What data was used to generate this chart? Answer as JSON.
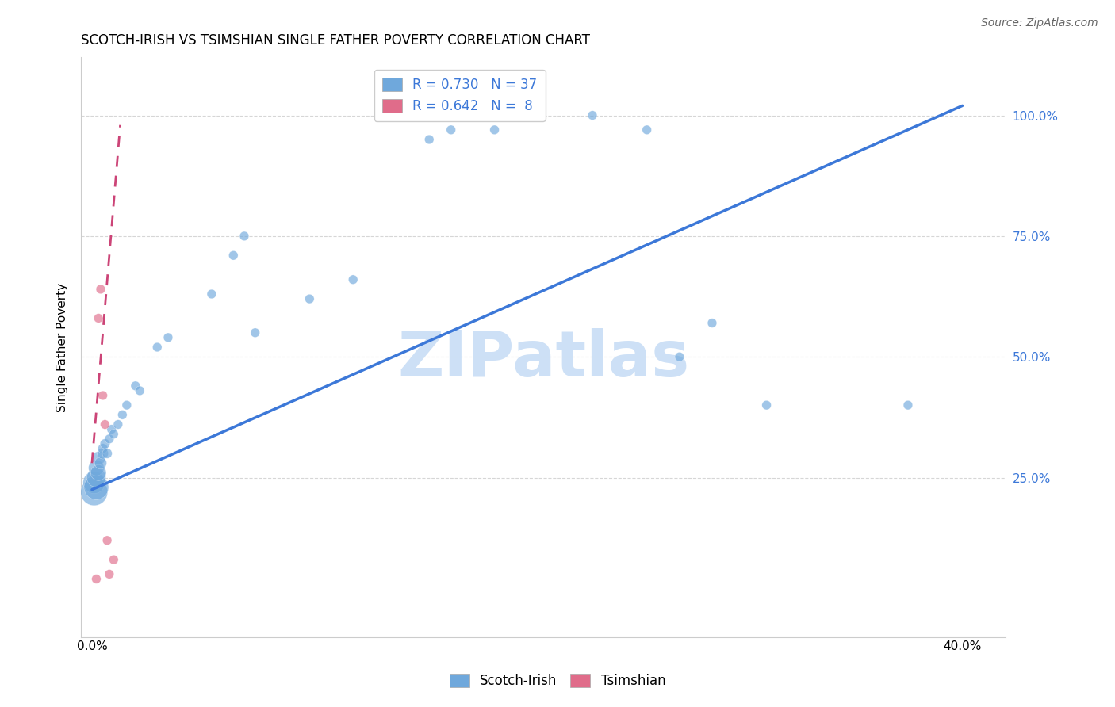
{
  "title": "SCOTCH-IRISH VS TSIMSHIAN SINGLE FATHER POVERTY CORRELATION CHART",
  "source": "Source: ZipAtlas.com",
  "ylabel": "Single Father Poverty",
  "ylabel_ticks": [
    "100.0%",
    "75.0%",
    "50.0%",
    "25.0%"
  ],
  "ylabel_tick_vals": [
    1.0,
    0.75,
    0.5,
    0.25
  ],
  "xlim": [
    -0.005,
    0.42
  ],
  "ylim": [
    -0.08,
    1.12
  ],
  "xticks": [
    0.0,
    0.05,
    0.1,
    0.15,
    0.2,
    0.25,
    0.3,
    0.35,
    0.4
  ],
  "xticklabels": [
    "0.0%",
    "",
    "",
    "",
    "",
    "",
    "",
    "",
    "40.0%"
  ],
  "scotch_irish_label": "Scotch-Irish",
  "tsimshian_label": "Tsimshian",
  "scotch_irish_R": 0.73,
  "scotch_irish_N": 37,
  "tsimshian_R": 0.642,
  "tsimshian_N": 8,
  "scotch_irish_color": "#6fa8dc",
  "tsimshian_color": "#e06c8a",
  "scotch_irish_line_color": "#3c78d8",
  "tsimshian_line_color": "#cc4477",
  "tsimshian_line_dash": true,
  "scotch_irish_x": [
    0.001,
    0.001,
    0.002,
    0.002,
    0.002,
    0.003,
    0.003,
    0.004,
    0.005,
    0.005,
    0.006,
    0.007,
    0.008,
    0.009,
    0.01,
    0.012,
    0.014,
    0.016,
    0.02,
    0.022,
    0.03,
    0.035,
    0.055,
    0.065,
    0.07,
    0.075,
    0.1,
    0.12,
    0.155,
    0.165,
    0.185,
    0.23,
    0.255,
    0.27,
    0.285,
    0.31,
    0.375
  ],
  "scotch_irish_y": [
    0.22,
    0.24,
    0.23,
    0.25,
    0.27,
    0.26,
    0.29,
    0.28,
    0.3,
    0.31,
    0.32,
    0.3,
    0.33,
    0.35,
    0.34,
    0.36,
    0.38,
    0.4,
    0.44,
    0.43,
    0.52,
    0.54,
    0.63,
    0.71,
    0.75,
    0.55,
    0.62,
    0.66,
    0.95,
    0.97,
    0.97,
    1.0,
    0.97,
    0.5,
    0.57,
    0.4,
    0.4
  ],
  "scotch_irish_sizes": [
    600,
    400,
    500,
    300,
    200,
    200,
    150,
    120,
    100,
    80,
    80,
    80,
    70,
    70,
    70,
    70,
    70,
    70,
    70,
    70,
    70,
    70,
    70,
    70,
    70,
    70,
    70,
    70,
    70,
    70,
    70,
    70,
    70,
    70,
    70,
    70,
    70
  ],
  "tsimshian_x": [
    0.002,
    0.003,
    0.004,
    0.005,
    0.006,
    0.007,
    0.008,
    0.01
  ],
  "tsimshian_y": [
    0.04,
    0.58,
    0.64,
    0.42,
    0.36,
    0.12,
    0.05,
    0.08
  ],
  "tsimshian_sizes": [
    70,
    70,
    70,
    70,
    70,
    70,
    70,
    70
  ],
  "si_line_x0": 0.0,
  "si_line_y0": 0.225,
  "si_line_x1": 0.4,
  "si_line_y1": 1.02,
  "ts_line_x0": 0.0,
  "ts_line_y0": 0.28,
  "ts_line_x1": 0.013,
  "ts_line_y1": 0.98,
  "watermark_text": "ZIPatlas",
  "watermark_color": "#c8ddf5",
  "background_color": "#ffffff",
  "grid_color": "#cccccc",
  "grid_style": "--",
  "spine_color": "#cccccc"
}
